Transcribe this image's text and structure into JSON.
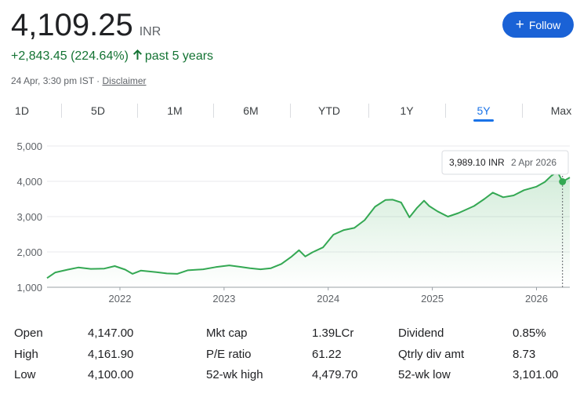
{
  "quote": {
    "price": "4,109.25",
    "currency": "INR",
    "change": "+2,843.45 (224.64%)",
    "change_arrow": "arrow-up-icon",
    "change_period": "past 5 years",
    "timestamp": "24 Apr, 3:30 pm IST · ",
    "disclaimer": "Disclaimer"
  },
  "follow_button": {
    "icon": "plus-icon",
    "label": "Follow"
  },
  "tabs": [
    {
      "label": "1D"
    },
    {
      "label": "5D"
    },
    {
      "label": "1M"
    },
    {
      "label": "6M"
    },
    {
      "label": "YTD"
    },
    {
      "label": "1Y"
    },
    {
      "label": "5Y",
      "active": true
    },
    {
      "label": "Max"
    }
  ],
  "tooltip": {
    "value": "3,989.10 INR",
    "date": "2 Apr 2026"
  },
  "colors": {
    "line": "#34a853",
    "accent": "#1a73e8",
    "positive": "#137333"
  },
  "chart_data": {
    "type": "area",
    "y_tick_labels": [
      "5,000",
      "4,000",
      "3,000",
      "2,000",
      "1,000"
    ],
    "x_tick_labels": [
      "2022",
      "2023",
      "2024",
      "2025",
      "2026"
    ],
    "ylim": [
      1000,
      5000
    ],
    "xlim": [
      2021.3,
      2026.32
    ],
    "grid": true,
    "series": [
      {
        "values": [
          [
            2021.3,
            1260
          ],
          [
            2021.38,
            1420
          ],
          [
            2021.5,
            1500
          ],
          [
            2021.6,
            1560
          ],
          [
            2021.72,
            1520
          ],
          [
            2021.85,
            1530
          ],
          [
            2021.95,
            1600
          ],
          [
            2022.05,
            1500
          ],
          [
            2022.12,
            1380
          ],
          [
            2022.2,
            1470
          ],
          [
            2022.35,
            1430
          ],
          [
            2022.45,
            1390
          ],
          [
            2022.55,
            1380
          ],
          [
            2022.65,
            1480
          ],
          [
            2022.8,
            1510
          ],
          [
            2022.92,
            1570
          ],
          [
            2023.05,
            1620
          ],
          [
            2023.15,
            1580
          ],
          [
            2023.25,
            1540
          ],
          [
            2023.35,
            1510
          ],
          [
            2023.45,
            1540
          ],
          [
            2023.55,
            1660
          ],
          [
            2023.65,
            1870
          ],
          [
            2023.72,
            2050
          ],
          [
            2023.78,
            1870
          ],
          [
            2023.85,
            1990
          ],
          [
            2023.95,
            2130
          ],
          [
            2024.05,
            2490
          ],
          [
            2024.15,
            2620
          ],
          [
            2024.25,
            2680
          ],
          [
            2024.35,
            2900
          ],
          [
            2024.45,
            3280
          ],
          [
            2024.55,
            3470
          ],
          [
            2024.62,
            3480
          ],
          [
            2024.7,
            3400
          ],
          [
            2024.78,
            2980
          ],
          [
            2024.85,
            3240
          ],
          [
            2024.92,
            3450
          ],
          [
            2024.97,
            3300
          ],
          [
            2025.05,
            3150
          ],
          [
            2025.15,
            3000
          ],
          [
            2025.25,
            3100
          ],
          [
            2025.4,
            3300
          ],
          [
            2025.5,
            3500
          ],
          [
            2025.58,
            3680
          ],
          [
            2025.68,
            3550
          ],
          [
            2025.78,
            3600
          ],
          [
            2025.88,
            3750
          ],
          [
            2026.0,
            3850
          ],
          [
            2026.08,
            3980
          ],
          [
            2026.14,
            4150
          ],
          [
            2026.2,
            4280
          ],
          [
            2026.25,
            3989
          ],
          [
            2026.32,
            4109
          ]
        ]
      }
    ]
  },
  "stats": [
    {
      "label": "Open",
      "value": "4,147.00"
    },
    {
      "label": "Mkt cap",
      "value": "1.39LCr"
    },
    {
      "label": "Dividend",
      "value": "0.85%"
    },
    {
      "label": "High",
      "value": "4,161.90"
    },
    {
      "label": "P/E ratio",
      "value": "61.22"
    },
    {
      "label": "Qtrly div amt",
      "value": "8.73"
    },
    {
      "label": "Low",
      "value": "4,100.00"
    },
    {
      "label": "52-wk high",
      "value": "4,479.70"
    },
    {
      "label": "52-wk low",
      "value": "3,101.00"
    }
  ]
}
